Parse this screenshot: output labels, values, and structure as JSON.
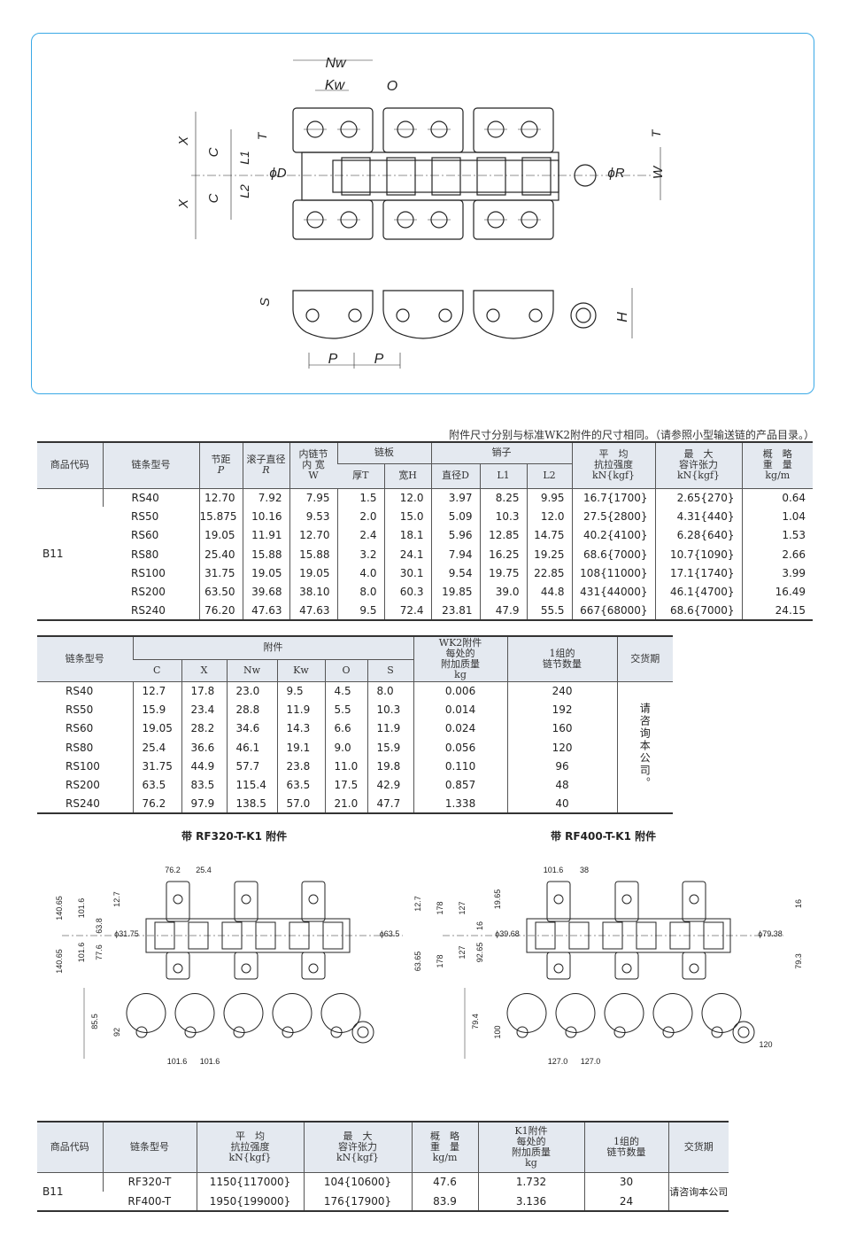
{
  "diagram_top": {
    "labels": {
      "nw": "Nw",
      "kw": "Kw",
      "o": "O",
      "x": "X",
      "c": "C",
      "t": "T",
      "l1": "L1",
      "l2": "L2",
      "d": "ϕD",
      "r": "ϕR",
      "w": "W",
      "s": "S",
      "h": "H",
      "p": "P"
    }
  },
  "note": "附件尺寸分别与标准WK2附件的尺寸相同。（请参照小型输送链的产品目录。）",
  "table1": {
    "headers": {
      "code": "商品代码",
      "model": "链条型号",
      "pitch": "节距",
      "pitch_sym": "P",
      "roller": "滚子直径",
      "roller_sym": "R",
      "inner": "内链节\n内 宽",
      "inner_sym": "W",
      "plate": "链板",
      "plate_t": "厚T",
      "plate_h": "宽H",
      "pin": "销子",
      "pin_d": "直径D",
      "pin_l1": "L1",
      "pin_l2": "L2",
      "tensile": "平　均\n抗拉强度",
      "tensile_unit": "kN{kgf}",
      "allow": "最　大\n容许张力",
      "allow_unit": "kN{kgf}",
      "weight": "概　略\n重　量",
      "weight_unit": "kg/m"
    },
    "code": "B11",
    "rows": [
      [
        "RS40",
        "12.70",
        "7.92",
        "7.95",
        "1.5",
        "12.0",
        "3.97",
        "8.25",
        "9.95",
        "16.7{1700}",
        "2.65{270}",
        "0.64"
      ],
      [
        "RS50",
        "15.875",
        "10.16",
        "9.53",
        "2.0",
        "15.0",
        "5.09",
        "10.3",
        "12.0",
        "27.5{2800}",
        "4.31{440}",
        "1.04"
      ],
      [
        "RS60",
        "19.05",
        "11.91",
        "12.70",
        "2.4",
        "18.1",
        "5.96",
        "12.85",
        "14.75",
        "40.2{4100}",
        "6.28{640}",
        "1.53"
      ],
      [
        "RS80",
        "25.40",
        "15.88",
        "15.88",
        "3.2",
        "24.1",
        "7.94",
        "16.25",
        "19.25",
        "68.6{7000}",
        "10.7{1090}",
        "2.66"
      ],
      [
        "RS100",
        "31.75",
        "19.05",
        "19.05",
        "4.0",
        "30.1",
        "9.54",
        "19.75",
        "22.85",
        "108{11000}",
        "17.1{1740}",
        "3.99"
      ],
      [
        "RS200",
        "63.50",
        "39.68",
        "38.10",
        "8.0",
        "60.3",
        "19.85",
        "39.0",
        "44.8",
        "431{44000}",
        "46.1{4700}",
        "16.49"
      ],
      [
        "RS240",
        "76.20",
        "47.63",
        "47.63",
        "9.5",
        "72.4",
        "23.81",
        "47.9",
        "55.5",
        "667{68000}",
        "68.6{7000}",
        "24.15"
      ]
    ]
  },
  "table2": {
    "headers": {
      "model": "链条型号",
      "attach": "附件",
      "c": "C",
      "x": "X",
      "nw": "Nw",
      "kw": "Kw",
      "o": "O",
      "s": "S",
      "mass": "WK2附件\n每处的\n附加质量",
      "mass_unit": "kg",
      "links": "1组的\n链节数量",
      "delivery": "交货期"
    },
    "delivery_value": "请咨询本公司。",
    "rows": [
      [
        "RS40",
        "12.7",
        "17.8",
        "23.0",
        "9.5",
        "4.5",
        "8.0",
        "0.006",
        "240"
      ],
      [
        "RS50",
        "15.9",
        "23.4",
        "28.8",
        "11.9",
        "5.5",
        "10.3",
        "0.014",
        "192"
      ],
      [
        "RS60",
        "19.05",
        "28.2",
        "34.6",
        "14.3",
        "6.6",
        "11.9",
        "0.024",
        "160"
      ],
      [
        "RS80",
        "25.4",
        "36.6",
        "46.1",
        "19.1",
        "9.0",
        "15.9",
        "0.056",
        "120"
      ],
      [
        "RS100",
        "31.75",
        "44.9",
        "57.7",
        "23.8",
        "11.0",
        "19.8",
        "0.110",
        "96"
      ],
      [
        "RS200",
        "63.5",
        "83.5",
        "115.4",
        "63.5",
        "17.5",
        "42.9",
        "0.857",
        "48"
      ],
      [
        "RS240",
        "76.2",
        "97.9",
        "138.5",
        "57.0",
        "21.0",
        "47.7",
        "1.338",
        "40"
      ]
    ]
  },
  "captions": {
    "left": "带 RF320-T-K1 附件",
    "right": "带 RF400-T-K1 附件"
  },
  "diagram_left": {
    "dims": [
      "76.2",
      "25.4",
      "140.65",
      "101.6",
      "12.7",
      "63.8",
      "ϕ31.75",
      "77.6",
      "101.6",
      "140.65",
      "ϕ63.5",
      "12.7",
      "63.65",
      "85.5",
      "92",
      "101.6",
      "101.6"
    ]
  },
  "diagram_right": {
    "dims": [
      "101.6",
      "38",
      "178",
      "127",
      "19.65",
      "16",
      "ϕ39.68",
      "92.65",
      "127",
      "178",
      "ϕ79.38",
      "16",
      "79.3",
      "79.4",
      "100",
      "127.0",
      "127.0",
      "120"
    ]
  },
  "table3": {
    "headers": {
      "code": "商品代码",
      "model": "链条型号",
      "tensile": "平　均\n抗拉强度",
      "tensile_unit": "kN{kgf}",
      "allow": "最　大\n容许张力",
      "allow_unit": "kN{kgf}",
      "weight": "概　略\n重　量",
      "weight_unit": "kg/m",
      "mass": "K1附件\n每处的\n附加质量",
      "mass_unit": "kg",
      "links": "1组的\n链节数量",
      "delivery": "交货期"
    },
    "code": "B11",
    "delivery_value": "请咨询本公司",
    "rows": [
      [
        "RF320-T",
        "1150{117000}",
        "104{10600}",
        "47.6",
        "1.732",
        "30"
      ],
      [
        "RF400-T",
        "1950{199000}",
        "176{17900}",
        "83.9",
        "3.136",
        "24"
      ]
    ]
  },
  "colors": {
    "frame": "#3aa9e6",
    "header_bg": "#e4e9f0"
  }
}
